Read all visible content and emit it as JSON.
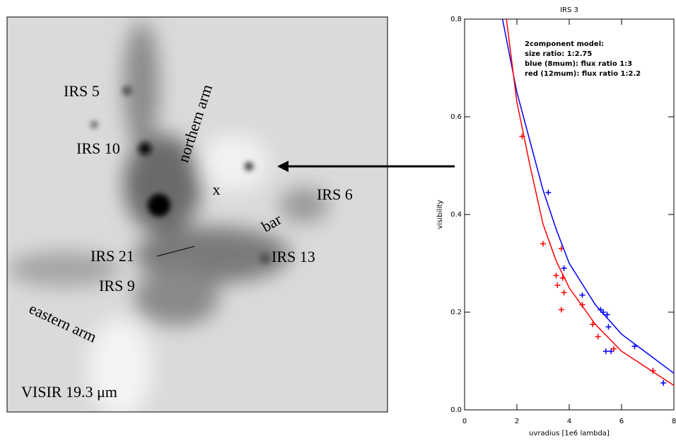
{
  "image": {
    "labels": [
      "IRS 5",
      "IRS 10",
      "northern arm",
      "x",
      "IRS 6",
      "bar",
      "IRS 21",
      "IRS 13",
      "IRS 9",
      "eastern arm",
      "VISIR 19.3 μm"
    ]
  },
  "chart_data": {
    "type": "scatter",
    "title": "IRS 3",
    "x_label": "uvradius [1e6 lambda]",
    "y_label": "visibility",
    "annotations": [
      "2component model:",
      "size ratio: 1:2.75",
      "blue (8mum): flux ratio 1:3",
      "red (12mum): flux ratio 1:2.2"
    ],
    "xlim": [
      0,
      8
    ],
    "ylim": [
      0,
      0.8
    ],
    "xticks": [
      0,
      2,
      4,
      6,
      8
    ],
    "yticks": [
      {
        "value": 0,
        "label": "0.0"
      },
      0.2,
      0.4,
      0.6,
      0.8
    ],
    "series": [
      {
        "style": "marker",
        "color": "#0000ff",
        "x": [
          3.2,
          3.8,
          4.5,
          5.2,
          5.3,
          5.45,
          5.5,
          5.6,
          5.4,
          6.5,
          7.2,
          7.6
        ],
        "values": [
          0.445,
          0.29,
          0.235,
          0.205,
          0.2,
          0.195,
          0.17,
          0.12,
          0.12,
          0.13,
          0.08,
          0.055
        ]
      },
      {
        "style": "marker",
        "color": "#ff0000",
        "x": [
          2.2,
          3.0,
          3.7,
          3.5,
          3.55,
          3.75,
          3.8,
          3.7,
          4.5,
          4.9,
          5.1,
          5.7,
          7.2
        ],
        "values": [
          0.56,
          0.34,
          0.33,
          0.275,
          0.255,
          0.27,
          0.24,
          0.205,
          0.215,
          0.175,
          0.15,
          0.125,
          0.08
        ]
      },
      {
        "style": "line",
        "color": "#0000ff",
        "x": [
          1.45,
          2,
          2.5,
          3,
          3.5,
          4,
          5,
          6,
          7,
          8
        ],
        "values": [
          0.8,
          0.65,
          0.55,
          0.45,
          0.37,
          0.3,
          0.215,
          0.155,
          0.115,
          0.075
        ]
      },
      {
        "style": "line",
        "color": "#ff0000",
        "x": [
          1.6,
          2,
          2.5,
          3,
          3.5,
          4,
          5,
          6,
          7,
          8
        ],
        "values": [
          0.8,
          0.63,
          0.5,
          0.38,
          0.305,
          0.25,
          0.175,
          0.12,
          0.085,
          0.05
        ]
      }
    ]
  }
}
